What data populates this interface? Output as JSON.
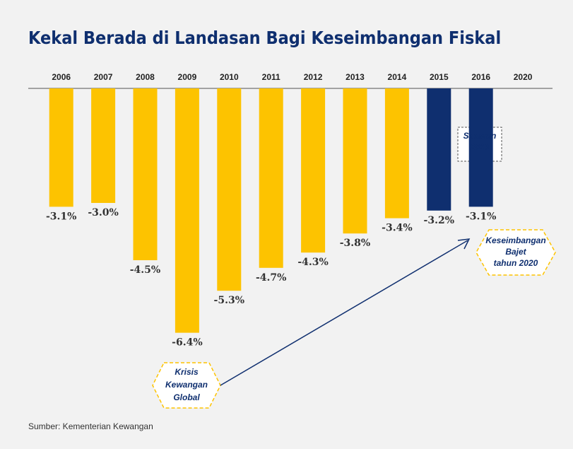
{
  "chart_data": {
    "type": "bar",
    "title": "Kekal Berada di Landasan Bagi Keseimbangan Fiskal",
    "categories": [
      "2006",
      "2007",
      "2008",
      "2009",
      "2010",
      "2011",
      "2012",
      "2013",
      "2014",
      "2015",
      "2016",
      "2020"
    ],
    "values": [
      -3.1,
      -3.0,
      -4.5,
      -6.4,
      -5.3,
      -4.7,
      -4.3,
      -3.8,
      -3.4,
      -3.2,
      -3.1,
      null
    ],
    "value_labels": [
      "-3.1%",
      "-3.0%",
      "-4.5%",
      "-6.4%",
      "-5.3%",
      "-4.7%",
      "-4.3%",
      "-3.8%",
      "-3.4%",
      "-3.2%",
      "-3.1%",
      null
    ],
    "colors": [
      "#fdc300",
      "#fdc300",
      "#fdc300",
      "#fdc300",
      "#fdc300",
      "#fdc300",
      "#fdc300",
      "#fdc300",
      "#fdc300",
      "#0f2f6f",
      "#0f2f6f",
      "#0f2f6f"
    ],
    "ylim": [
      -7,
      0
    ],
    "annotations": [
      {
        "lines": [
          "Sasaran",
          "2016"
        ]
      },
      {
        "lines": [
          "Krisis",
          "Kewangan",
          "Global"
        ]
      },
      {
        "lines": [
          "Keseimbangan",
          "Bajet",
          "tahun 2020"
        ]
      }
    ],
    "source": "Sumber: Kementerian Kewangan"
  }
}
